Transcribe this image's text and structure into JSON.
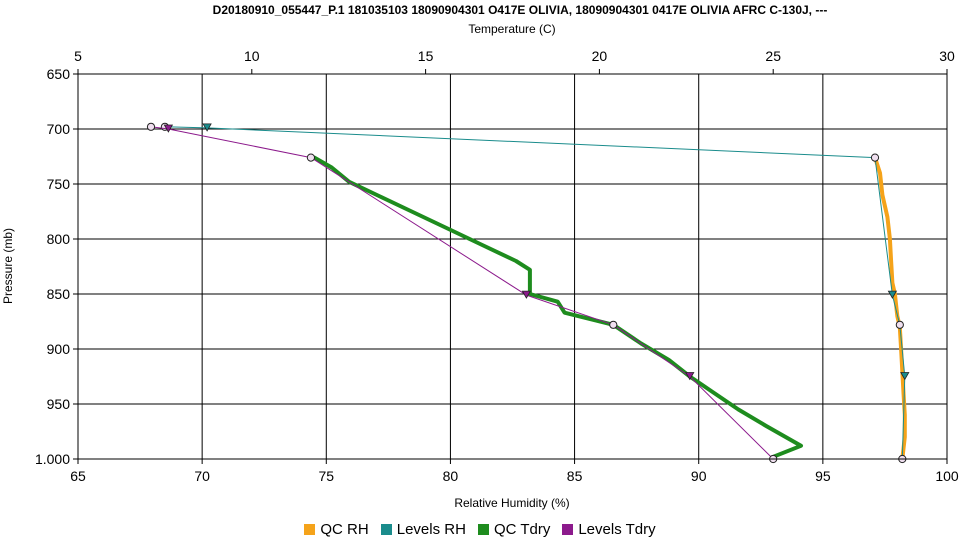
{
  "chart_data": {
    "type": "line",
    "title": "D20180910_055447_P.1 181035103 18090904301 O417E OLIVIA, 18090904301 0417E OLIVIA AFRC C-130J, ---",
    "x_bottom": {
      "label": "Relative Humidity (%)",
      "range": [
        65,
        100
      ],
      "ticks": [
        "65",
        "70",
        "75",
        "80",
        "85",
        "90",
        "95",
        "100"
      ]
    },
    "x_top": {
      "label": "Temperature (C)",
      "range": [
        5,
        30
      ],
      "ticks": [
        "5",
        "10",
        "15",
        "20",
        "25",
        "30"
      ]
    },
    "y": {
      "label": "Pressure (mb)",
      "range": [
        650,
        1000
      ],
      "inverted": true,
      "ticks": [
        "650",
        "700",
        "750",
        "800",
        "850",
        "900",
        "950",
        "1.000"
      ]
    },
    "grid": true,
    "legend_position": "bottom",
    "series": [
      {
        "name": "QC RH",
        "color": "#f5a31a",
        "axis": "RH",
        "style": "thick",
        "points": [
          [
            97.1,
            726
          ],
          [
            97.3,
            740
          ],
          [
            97.4,
            760
          ],
          [
            97.6,
            780
          ],
          [
            97.7,
            800
          ],
          [
            97.75,
            820
          ],
          [
            97.8,
            840
          ],
          [
            97.9,
            850
          ],
          [
            98.0,
            870
          ],
          [
            98.1,
            880
          ],
          [
            98.15,
            900
          ],
          [
            98.2,
            920
          ],
          [
            98.25,
            940
          ],
          [
            98.3,
            960
          ],
          [
            98.3,
            980
          ],
          [
            98.2,
            1000
          ]
        ]
      },
      {
        "name": "Levels RH",
        "color": "#1a8c8c",
        "axis": "RH",
        "style": "thin",
        "points": [
          [
            68.5,
            698
          ],
          [
            70.2,
            699
          ],
          [
            97.1,
            726
          ],
          [
            97.8,
            851
          ],
          [
            98.1,
            878
          ],
          [
            98.3,
            925
          ],
          [
            98.2,
            1000
          ]
        ]
      },
      {
        "name": "QC Tdry",
        "color": "#1e8c1e",
        "axis": "T",
        "style": "thick",
        "points": [
          [
            11.8,
            726
          ],
          [
            12.3,
            735
          ],
          [
            12.8,
            748
          ],
          [
            13.6,
            760
          ],
          [
            14.6,
            775
          ],
          [
            15.6,
            790
          ],
          [
            16.6,
            805
          ],
          [
            17.6,
            820
          ],
          [
            18.0,
            828
          ],
          [
            18.0,
            850
          ],
          [
            18.8,
            857
          ],
          [
            19.0,
            867
          ],
          [
            20.4,
            878
          ],
          [
            21.2,
            895
          ],
          [
            22.0,
            910
          ],
          [
            22.6,
            925
          ],
          [
            23.3,
            940
          ],
          [
            24.0,
            955
          ],
          [
            24.8,
            970
          ],
          [
            25.8,
            988
          ],
          [
            25.0,
            998
          ]
        ]
      },
      {
        "name": "Levels Tdry",
        "color": "#8c1a8c",
        "axis": "T",
        "style": "thin",
        "points": [
          [
            7.1,
            698
          ],
          [
            7.6,
            700
          ],
          [
            11.7,
            726
          ],
          [
            17.9,
            851
          ],
          [
            20.4,
            878
          ],
          [
            22.6,
            925
          ],
          [
            25.0,
            1000
          ]
        ]
      }
    ]
  },
  "legend": [
    {
      "label": "QC RH",
      "color": "#f5a31a"
    },
    {
      "label": "Levels RH",
      "color": "#1a8c8c"
    },
    {
      "label": "QC Tdry",
      "color": "#1e8c1e"
    },
    {
      "label": "Levels Tdry",
      "color": "#8c1a8c"
    }
  ]
}
